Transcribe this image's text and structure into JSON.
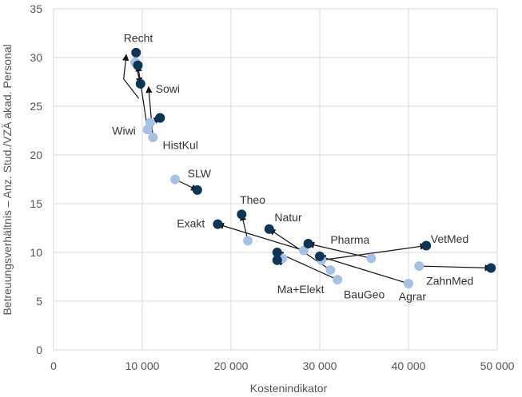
{
  "chart_data": {
    "type": "scatter",
    "title": "",
    "xlabel": "Kostenindikator",
    "ylabel": "Betreuungsverhältnis – Anz. Stud./VZÄ akad. Personal",
    "xlim": [
      0,
      50000
    ],
    "ylim": [
      0,
      35
    ],
    "x_ticks": [
      0,
      10000,
      20000,
      30000,
      40000,
      50000
    ],
    "x_tick_labels": [
      "0",
      "10 000",
      "20 000",
      "30 000",
      "40 000",
      "50 000"
    ],
    "y_ticks": [
      0,
      5,
      10,
      15,
      20,
      25,
      30,
      35
    ],
    "y_tick_labels": [
      "0",
      "5",
      "10",
      "15",
      "20",
      "25",
      "30",
      "35"
    ],
    "grid": true,
    "colors": {
      "start": "#a6c1e8",
      "end": "#0d3556",
      "arrow": "#111111"
    },
    "series": [
      {
        "label": "Recht",
        "start": [
          9200,
          29.5
        ],
        "end": [
          9300,
          30.5
        ],
        "arrow_tip": [
          8200,
          30.3
        ],
        "arrow_path": [
          [
            9600,
            25.8
          ],
          [
            7900,
            27.8
          ],
          [
            8200,
            30.3
          ]
        ]
      },
      {
        "label": "Sowi",
        "start": [
          9200,
          29.5
        ],
        "end": [
          9800,
          27.3
        ],
        "arrow_tip": [
          9800,
          27.3
        ],
        "arrow_path": [
          [
            9200,
            29.5
          ],
          [
            9800,
            27.3
          ]
        ]
      },
      {
        "label": "Wiwi",
        "start": [
          10600,
          22.6
        ],
        "end": [
          9500,
          29.2
        ],
        "arrow_tip": [
          9500,
          29.2
        ],
        "arrow_path": [
          [
            10600,
            22.6
          ],
          [
            9500,
            29.2
          ]
        ]
      },
      {
        "label": "HistKul",
        "start": [
          11200,
          21.8
        ],
        "end": [
          12000,
          23.8
        ],
        "arrow_tip": [
          10700,
          27.0
        ],
        "arrow_path": [
          [
            11200,
            21.8
          ],
          [
            10700,
            27.0
          ]
        ]
      },
      {
        "label": "",
        "start": [
          10900,
          23.3
        ],
        "end": [
          12000,
          23.8
        ],
        "arrow_tip": [
          12000,
          23.8
        ],
        "arrow_path": [
          [
            10900,
            23.3
          ],
          [
            12000,
            23.8
          ]
        ]
      },
      {
        "label": "SLW",
        "start": [
          13700,
          17.5
        ],
        "end": [
          16200,
          16.4
        ],
        "arrow_tip": [
          16200,
          16.4
        ],
        "arrow_path": [
          [
            13700,
            17.5
          ],
          [
            16200,
            16.4
          ]
        ]
      },
      {
        "label": "Theo",
        "start": [
          21900,
          11.2
        ],
        "end": [
          21200,
          13.9
        ],
        "arrow_tip": [
          21200,
          13.9
        ],
        "arrow_path": [
          [
            21900,
            11.2
          ],
          [
            21200,
            13.9
          ]
        ]
      },
      {
        "label": "Exakt",
        "start": [
          28200,
          10.2
        ],
        "end": [
          18500,
          12.9
        ],
        "arrow_tip": [
          18500,
          12.9
        ],
        "arrow_path": [
          [
            28200,
            10.2
          ],
          [
            18500,
            12.9
          ]
        ]
      },
      {
        "label": "Natur",
        "start": [
          31200,
          8.2
        ],
        "end": [
          24300,
          12.4
        ],
        "arrow_tip": [
          24300,
          12.4
        ],
        "arrow_path": [
          [
            31200,
            8.2
          ],
          [
            24300,
            12.4
          ]
        ]
      },
      {
        "label": "Pharma",
        "start": [
          35800,
          9.4
        ],
        "end": [
          28700,
          10.9
        ],
        "arrow_tip": [
          28700,
          10.9
        ],
        "arrow_path": [
          [
            35800,
            9.4
          ],
          [
            28700,
            10.9
          ]
        ]
      },
      {
        "label": "VetMed",
        "start": [
          30200,
          9.2
        ],
        "end": [
          42000,
          10.7
        ],
        "arrow_tip": [
          42000,
          10.7
        ],
        "arrow_path": [
          [
            30200,
            9.2
          ],
          [
            42000,
            10.7
          ]
        ]
      },
      {
        "label": "ZahnMed",
        "start": [
          41200,
          8.6
        ],
        "end": [
          49300,
          8.4
        ],
        "arrow_tip": [
          49300,
          8.4
        ],
        "arrow_path": [
          [
            41200,
            8.6
          ],
          [
            49300,
            8.4
          ]
        ]
      },
      {
        "label": "Agrar",
        "start": [
          40000,
          6.8
        ],
        "end": [
          30000,
          9.6
        ],
        "arrow_tip": [
          30000,
          9.6
        ],
        "arrow_path": [
          [
            40000,
            6.8
          ],
          [
            30000,
            9.6
          ]
        ]
      },
      {
        "label": "BauGeo",
        "start": [
          32000,
          7.2
        ],
        "end": [
          25200,
          10.0
        ],
        "arrow_tip": [
          25200,
          10.0
        ],
        "arrow_path": [
          [
            32000,
            7.2
          ],
          [
            25200,
            10.0
          ]
        ]
      },
      {
        "label": "Ma+Elekt",
        "start": [
          25800,
          9.4
        ],
        "end": [
          25200,
          9.2
        ],
        "arrow_tip": [
          25600,
          8.7
        ],
        "arrow_path": [
          [
            25800,
            9.4
          ],
          [
            25600,
            8.7
          ]
        ]
      }
    ],
    "labels": [
      {
        "text": "Recht",
        "x": 7900,
        "y": 31.6,
        "anchor": "start"
      },
      {
        "text": "Sowi",
        "x": 11500,
        "y": 26.4,
        "anchor": "start"
      },
      {
        "text": "Wiwi",
        "x": 6600,
        "y": 22.1,
        "anchor": "start"
      },
      {
        "text": "HistKul",
        "x": 12300,
        "y": 20.6,
        "anchor": "start"
      },
      {
        "text": "SLW",
        "x": 15100,
        "y": 17.7,
        "anchor": "start"
      },
      {
        "text": "Theo",
        "x": 21000,
        "y": 15.0,
        "anchor": "start"
      },
      {
        "text": "Exakt",
        "x": 13900,
        "y": 12.6,
        "anchor": "start"
      },
      {
        "text": "Natur",
        "x": 24900,
        "y": 13.2,
        "anchor": "start"
      },
      {
        "text": "Pharma",
        "x": 31200,
        "y": 10.9,
        "anchor": "start"
      },
      {
        "text": "VetMed",
        "x": 42500,
        "y": 11.0,
        "anchor": "start"
      },
      {
        "text": "ZahnMed",
        "x": 42000,
        "y": 6.7,
        "anchor": "start"
      },
      {
        "text": "Ma+Elekt",
        "x": 25200,
        "y": 5.8,
        "anchor": "start"
      },
      {
        "text": "BauGeo",
        "x": 32700,
        "y": 5.3,
        "anchor": "start"
      },
      {
        "text": "Agrar",
        "x": 38900,
        "y": 5.1,
        "anchor": "start"
      }
    ]
  }
}
